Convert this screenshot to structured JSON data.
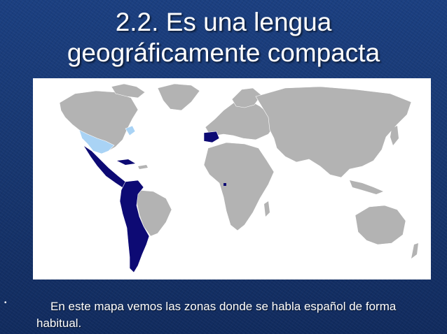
{
  "slide": {
    "title_line1": "2.2. Es una lengua",
    "title_line2": "geográficamente compacta",
    "bullet": "•",
    "caption_line1": "En este mapa vemos las zonas donde se habla español de forma",
    "caption_line2": "habitual."
  },
  "map": {
    "colors": {
      "background": "#ffffff",
      "land": "#b3b3b3",
      "spanish_official": "#0d0a74",
      "spanish_significant": "#a9d3f5",
      "borders": "#ffffff"
    }
  }
}
